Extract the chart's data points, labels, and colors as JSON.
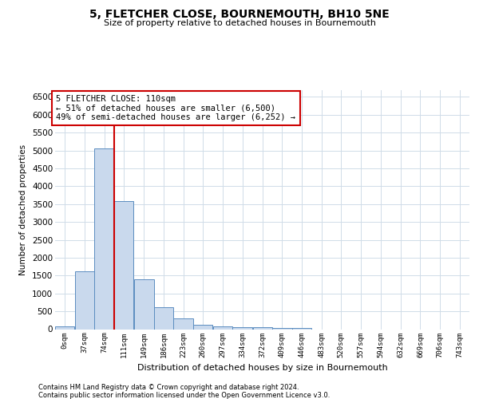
{
  "title": "5, FLETCHER CLOSE, BOURNEMOUTH, BH10 5NE",
  "subtitle": "Size of property relative to detached houses in Bournemouth",
  "xlabel": "Distribution of detached houses by size in Bournemouth",
  "ylabel": "Number of detached properties",
  "footnote1": "Contains HM Land Registry data © Crown copyright and database right 2024.",
  "footnote2": "Contains public sector information licensed under the Open Government Licence v3.0.",
  "bar_labels": [
    "0sqm",
    "37sqm",
    "74sqm",
    "111sqm",
    "149sqm",
    "186sqm",
    "223sqm",
    "260sqm",
    "297sqm",
    "334sqm",
    "372sqm",
    "409sqm",
    "446sqm",
    "483sqm",
    "520sqm",
    "557sqm",
    "594sqm",
    "632sqm",
    "669sqm",
    "706sqm",
    "743sqm"
  ],
  "bar_values": [
    70,
    1620,
    5060,
    3580,
    1400,
    620,
    300,
    130,
    80,
    55,
    45,
    40,
    35,
    3,
    3,
    3,
    3,
    3,
    3,
    3,
    3
  ],
  "bar_color": "#c9d9ed",
  "bar_edge_color": "#5b8dc0",
  "grid_color": "#d0dce8",
  "red_color": "#cc0000",
  "property_label": "5 FLETCHER CLOSE: 110sqm",
  "annotation_line1": "← 51% of detached houses are smaller (6,500)",
  "annotation_line2": "49% of semi-detached houses are larger (6,252) →",
  "ylim_max": 6700,
  "yticks": [
    0,
    500,
    1000,
    1500,
    2000,
    2500,
    3000,
    3500,
    4000,
    4500,
    5000,
    5500,
    6000,
    6500
  ],
  "vline_x": 111,
  "bin_width": 37
}
